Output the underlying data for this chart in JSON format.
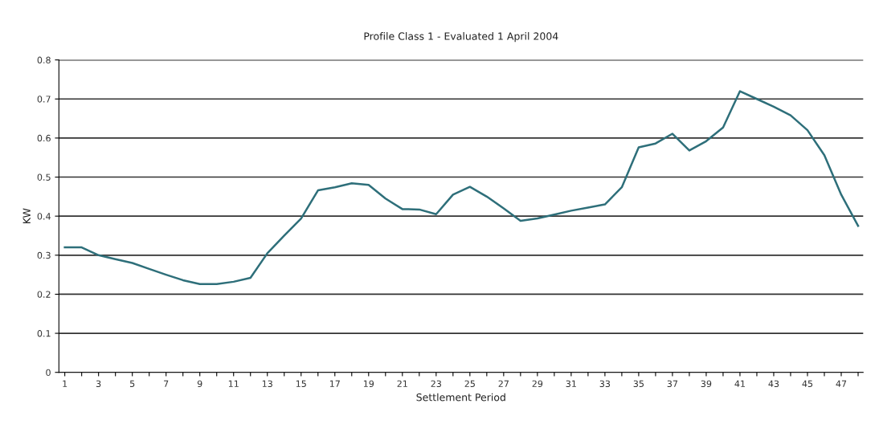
{
  "chart_data": {
    "type": "line",
    "title": "Profile Class 1 - Evaluated 1 April 2004",
    "xlabel": "Settlement Period",
    "ylabel": "KW",
    "categories": [
      "1",
      null,
      "3",
      null,
      "5",
      null,
      "7",
      null,
      "9",
      null,
      "11",
      null,
      "13",
      null,
      "15",
      null,
      "17",
      null,
      "19",
      null,
      "21",
      null,
      "23",
      null,
      "25",
      null,
      "27",
      null,
      "29",
      null,
      "31",
      null,
      "33",
      null,
      "35",
      null,
      "37",
      null,
      "39",
      null,
      "41",
      null,
      "43",
      null,
      "45",
      null,
      "47",
      null
    ],
    "series": [
      {
        "color": "#2e6f7a",
        "values": [
          0.32,
          0.32,
          0.3,
          0.29,
          0.28,
          0.265,
          0.25,
          0.236,
          0.226,
          0.226,
          0.232,
          0.242,
          0.305,
          0.35,
          0.394,
          0.466,
          0.474,
          0.484,
          0.48,
          0.445,
          0.418,
          0.417,
          0.405,
          0.455,
          0.475,
          0.45,
          0.42,
          0.388,
          0.394,
          0.404,
          0.414,
          0.422,
          0.43,
          0.474,
          0.576,
          0.586,
          0.611,
          0.568,
          0.592,
          0.627,
          0.72,
          0.7,
          0.68,
          0.658,
          0.62,
          0.556,
          0.455,
          0.375
        ]
      }
    ],
    "ylim": [
      0,
      0.8
    ],
    "yticks": [
      0,
      0.1,
      0.2,
      0.3,
      0.4,
      0.5,
      0.6,
      0.7,
      0.8
    ],
    "grid": "y",
    "legend": false,
    "marker": "none",
    "line_style": "solid"
  }
}
